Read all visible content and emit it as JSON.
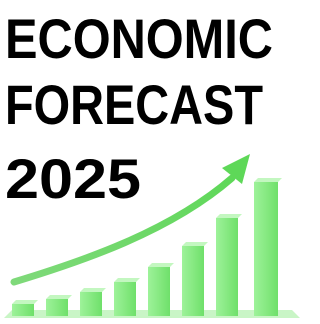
{
  "title_lines": [
    "ECONOMIC",
    "FORECAST",
    "2025"
  ]
}
